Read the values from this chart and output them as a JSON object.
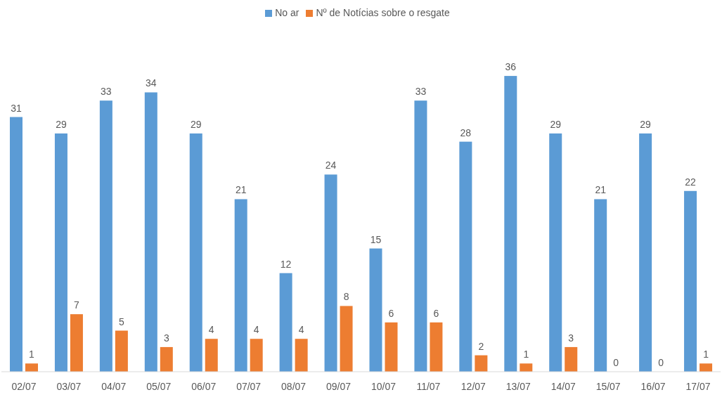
{
  "chart_data": {
    "type": "bar",
    "categories": [
      "02/07",
      "03/07",
      "04/07",
      "05/07",
      "06/07",
      "07/07",
      "08/07",
      "09/07",
      "10/07",
      "11/07",
      "12/07",
      "13/07",
      "14/07",
      "15/07",
      "16/07",
      "17/07"
    ],
    "series": [
      {
        "name": "No ar",
        "color": "#5b9bd5",
        "values": [
          31,
          29,
          33,
          34,
          29,
          21,
          12,
          24,
          15,
          33,
          28,
          36,
          29,
          21,
          29,
          22
        ]
      },
      {
        "name": "Nº de Notícias sobre o resgate",
        "color": "#ed7d31",
        "values": [
          1,
          7,
          5,
          3,
          4,
          4,
          4,
          8,
          6,
          6,
          2,
          1,
          3,
          0,
          0,
          1
        ]
      }
    ],
    "data_labels": true,
    "legend": "top",
    "grid": false
  }
}
